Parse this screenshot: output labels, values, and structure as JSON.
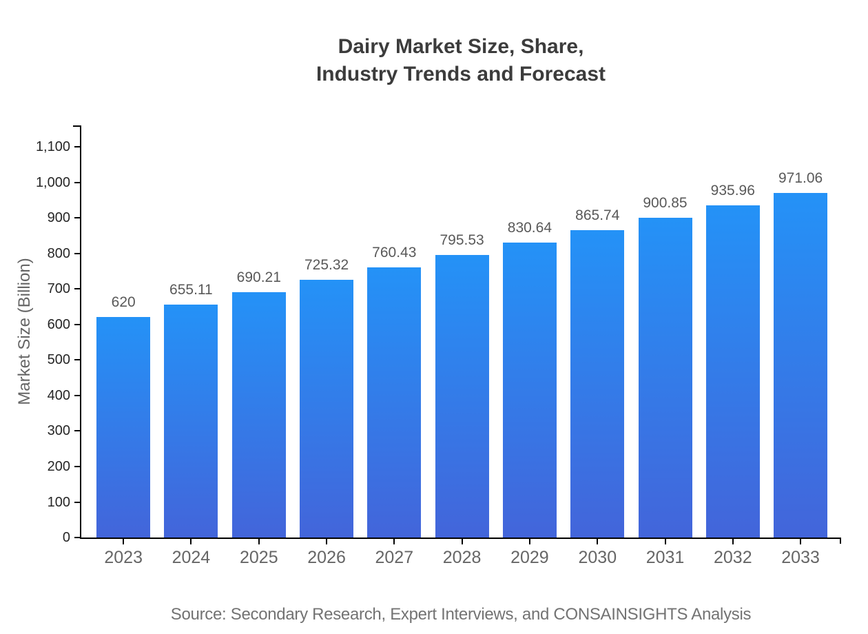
{
  "figure": {
    "title_line1": "Dairy Market Size, Share,",
    "title_line2": "Industry Trends and Forecast",
    "source": "Source: Secondary Research, Expert Interviews, and CONSAINSIGHTS Analysis"
  },
  "chart_data": {
    "type": "bar",
    "title": "Dairy Market Size, Share, Industry Trends and Forecast",
    "categories": [
      "2023",
      "2024",
      "2025",
      "2026",
      "2027",
      "2028",
      "2029",
      "2030",
      "2031",
      "2032",
      "2033"
    ],
    "values": [
      620,
      655.11,
      690.21,
      725.32,
      760.43,
      795.53,
      830.64,
      865.74,
      900.85,
      935.96,
      971.06
    ],
    "value_labels": [
      "620",
      "655.11",
      "690.21",
      "725.32",
      "760.43",
      "795.53",
      "830.64",
      "865.74",
      "900.85",
      "935.96",
      "971.06"
    ],
    "xlabel": "",
    "ylabel": "Market Size (Billion)",
    "ylim": [
      0,
      1100
    ],
    "yticks": [
      0,
      100,
      200,
      300,
      400,
      500,
      600,
      700,
      800,
      900,
      1000,
      1100
    ],
    "ytick_labels": [
      "0",
      "100",
      "200",
      "300",
      "400",
      "500",
      "600",
      "700",
      "800",
      "900",
      "1,000",
      "1,100"
    ],
    "grid": false,
    "legend": null,
    "bar_color_top": "#2492f7",
    "bar_color_bottom": "#4365da",
    "axis_color": "#000000",
    "value_label_color": "#595959",
    "xtick_label_color": "#666666",
    "ytick_label_color": "#262626"
  }
}
